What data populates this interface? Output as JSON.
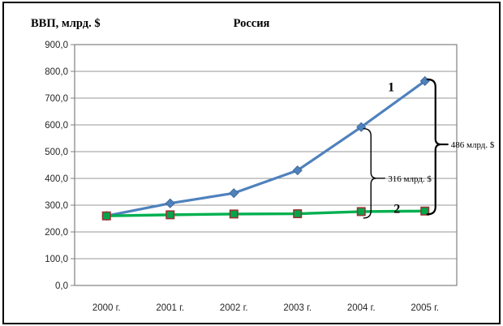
{
  "frame": {
    "background": "#ffffff",
    "border_color": "#000000"
  },
  "chart_data": {
    "type": "line",
    "title": "Россия",
    "ylabel": "ВВП, млрд. $",
    "xlabel": "",
    "categories": [
      "2000 г.",
      "2001 г.",
      "2002 г.",
      "2003 г.",
      "2004 г.",
      "2005 г."
    ],
    "series": [
      {
        "name": "1",
        "color": "#4f81bd",
        "line_width": 3.2,
        "marker": "diamond",
        "marker_color": "#4f81bd",
        "marker_border": "#3a6491",
        "values": [
          260,
          307,
          345,
          430,
          592,
          764
        ]
      },
      {
        "name": "2",
        "color": "#00b050",
        "line_width": 3.4,
        "marker": "square",
        "marker_color": "#00a64a",
        "marker_border": "#963634",
        "values": [
          260,
          264,
          267,
          268,
          276,
          278
        ]
      }
    ],
    "ylim": [
      0,
      900
    ],
    "ytick_step": 100,
    "ytick_labels": [
      "0,0",
      "100,0",
      "200,0",
      "300,0",
      "400,0",
      "500,0",
      "600,0",
      "700,0",
      "800,0",
      "900,0"
    ],
    "grid": true,
    "gridline_color": "#979797",
    "plot_border_color": "#808080",
    "legend": "none",
    "annotations": [
      {
        "type": "brace",
        "text": "316 млрд. $",
        "category_index": 4,
        "brace_dx": 12,
        "y1_off": 2,
        "y2_off": 8,
        "mid_off": 6,
        "tip": 17,
        "width": 1.4
      },
      {
        "type": "brace",
        "text": "486 млрд. $",
        "category_index": 5,
        "brace_dx": 13,
        "y1_off": -2,
        "y2_off": 4,
        "mid_off": -3,
        "tip": 15,
        "width": 2.2
      }
    ],
    "series_point_labels": [
      {
        "text": "1",
        "x_index": 4.47,
        "value": 742
      },
      {
        "text": "2",
        "text_note": "",
        "x_index": 4.56,
        "value": 288
      }
    ]
  }
}
